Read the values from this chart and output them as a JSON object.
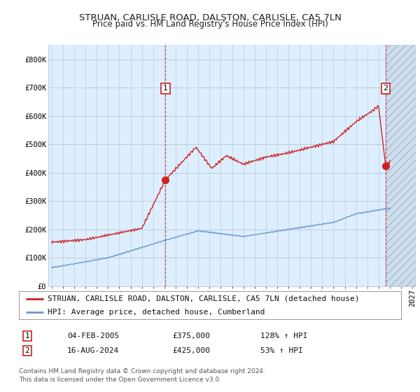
{
  "title": "STRUAN, CARLISLE ROAD, DALSTON, CARLISLE, CA5 7LN",
  "subtitle": "Price paid vs. HM Land Registry's House Price Index (HPI)",
  "yticks": [
    0,
    100000,
    200000,
    300000,
    400000,
    500000,
    600000,
    700000,
    800000
  ],
  "ytick_labels": [
    "£0",
    "£100K",
    "£200K",
    "£300K",
    "£400K",
    "£500K",
    "£600K",
    "£700K",
    "£800K"
  ],
  "xlim_start": 1994.7,
  "xlim_end": 2027.3,
  "ylim": [
    0,
    850000
  ],
  "point1_x": 2005.09,
  "point1_y": 375000,
  "point2_x": 2024.62,
  "point2_y": 425000,
  "point1_label": "1",
  "point2_label": "2",
  "legend_line1": "STRUAN, CARLISLE ROAD, DALSTON, CARLISLE, CA5 7LN (detached house)",
  "legend_line2": "HPI: Average price, detached house, Cumberland",
  "table_row1_num": "1",
  "table_row1_date": "04-FEB-2005",
  "table_row1_price": "£375,000",
  "table_row1_hpi": "128% ↑ HPI",
  "table_row2_num": "2",
  "table_row2_date": "16-AUG-2024",
  "table_row2_price": "£425,000",
  "table_row2_hpi": "53% ↑ HPI",
  "footnote": "Contains HM Land Registry data © Crown copyright and database right 2024.\nThis data is licensed under the Open Government Licence v3.0.",
  "red_line_color": "#cc2222",
  "blue_line_color": "#6699cc",
  "chart_bg_color": "#ddeeff",
  "hatch_bg_color": "#ccddee",
  "background_color": "#ffffff",
  "grid_color": "#bbccdd",
  "title_fontsize": 9.5,
  "subtitle_fontsize": 8.5,
  "axis_fontsize": 7.5,
  "legend_fontsize": 8,
  "table_fontsize": 8,
  "footnote_fontsize": 6.5
}
